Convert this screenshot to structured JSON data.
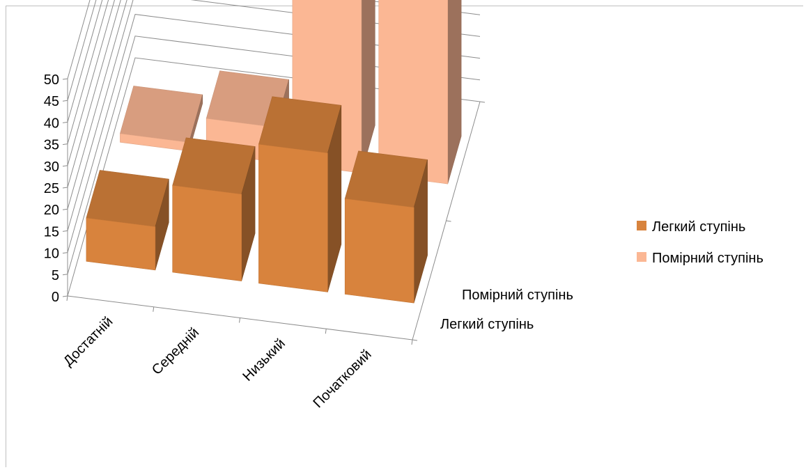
{
  "chart_data": {
    "type": "bar",
    "subtype": "3d-column-depth",
    "title": "",
    "categories": [
      "Достатній",
      "Середній",
      "Низький",
      "Початковий"
    ],
    "series": [
      {
        "name": "Легкий ступінь",
        "values": [
          10,
          20,
          32,
          22
        ],
        "color": "#D8833D"
      },
      {
        "name": "Помірний ступінь",
        "values": [
          2,
          8,
          40,
          50
        ],
        "color": "#FBB794"
      }
    ],
    "y_ticks": [
      "0",
      "5",
      "10",
      "15",
      "20",
      "25",
      "30",
      "35",
      "40",
      "45",
      "50"
    ],
    "ylim": [
      0,
      50
    ],
    "depth_labels": [
      "Помірний ступінь",
      "Легкий ступінь"
    ],
    "grid": true,
    "legend_position": "right"
  }
}
